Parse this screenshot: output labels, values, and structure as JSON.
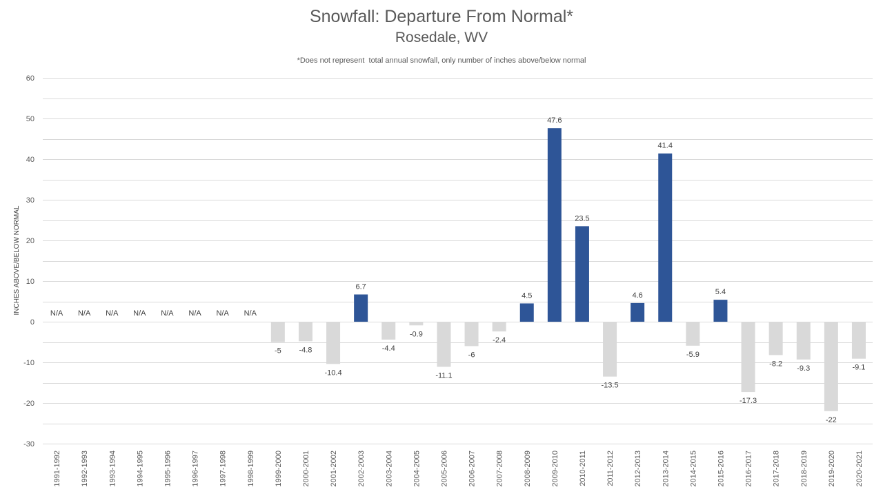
{
  "chart_data": {
    "type": "bar",
    "title": "Snowfall: Departure From Normal*",
    "subtitle": "Rosedale, WV",
    "note": "*Does not represent  total annual snowfall, only number of inches above/below normal",
    "xlabel": "",
    "ylabel": "INCHES ABOVE/BELOW NORMAL",
    "ylim": [
      -30,
      60
    ],
    "yticks": [
      60,
      50,
      40,
      30,
      20,
      10,
      0,
      -10,
      -20,
      -30
    ],
    "grid": true,
    "legend": "none",
    "colors": {
      "positive": "#2e5597",
      "negative": "#d9d9d9"
    },
    "categories": [
      "1991-1992",
      "1992-1993",
      "1993-1994",
      "1994-1995",
      "1995-1996",
      "1996-1997",
      "1997-1998",
      "1998-1999",
      "1999-2000",
      "2000-2001",
      "2001-2002",
      "2002-2003",
      "2003-2004",
      "2004-2005",
      "2005-2006",
      "2006-2007",
      "2007-2008",
      "2008-2009",
      "2009-2010",
      "2010-2011",
      "2011-2012",
      "2012-2013",
      "2013-2014",
      "2014-2015",
      "2015-2016",
      "2016-2017",
      "2017-2018",
      "2018-2019",
      "2019-2020",
      "2020-2021"
    ],
    "values": [
      null,
      null,
      null,
      null,
      null,
      null,
      null,
      null,
      -5,
      -4.8,
      -10.4,
      6.7,
      -4.4,
      -0.9,
      -11.1,
      -6,
      -2.4,
      4.5,
      47.6,
      23.5,
      -13.5,
      4.6,
      41.4,
      -5.9,
      5.4,
      -17.3,
      -8.2,
      -9.3,
      -22,
      -9.1
    ],
    "labels": [
      "N/A",
      "N/A",
      "N/A",
      "N/A",
      "N/A",
      "N/A",
      "N/A",
      "N/A",
      "-5",
      "-4.8",
      "-10.4",
      "6.7",
      "-4.4",
      "-0.9",
      "-11.1",
      "-6",
      "-2.4",
      "4.5",
      "47.6",
      "23.5",
      "-13.5",
      "4.6",
      "41.4",
      "-5.9",
      "5.4",
      "-17.3",
      "-8.2",
      "-9.3",
      "-22",
      "-9.1"
    ]
  }
}
